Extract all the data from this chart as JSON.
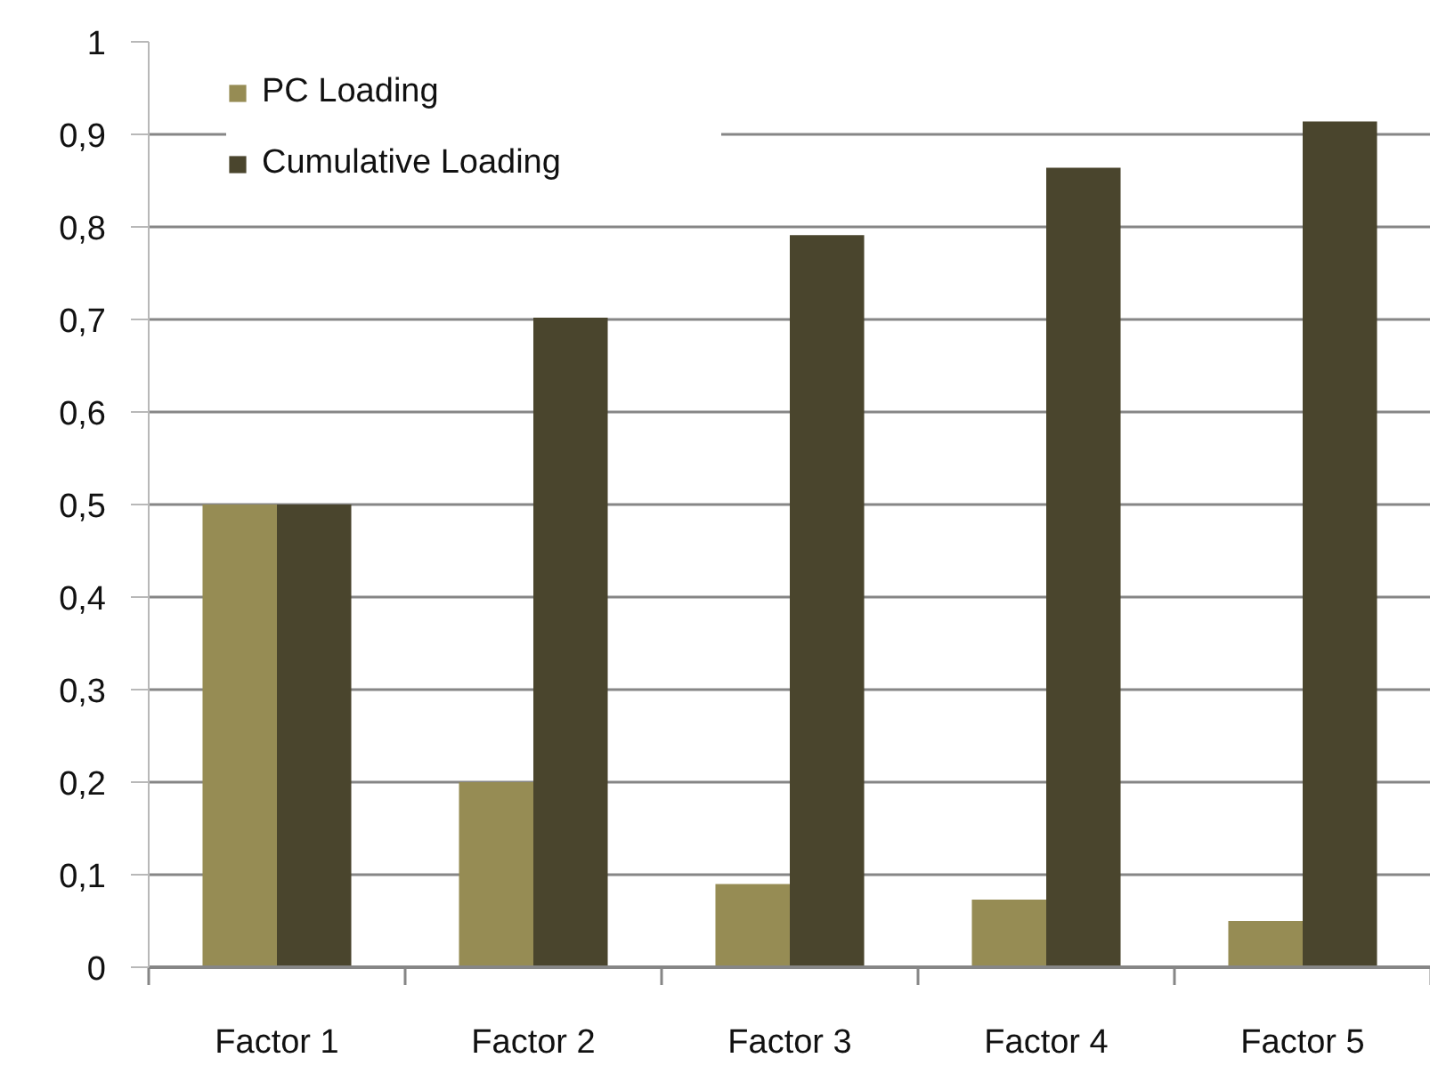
{
  "chart_data": {
    "type": "bar",
    "categories": [
      "Factor 1",
      "Factor 2",
      "Factor 3",
      "Factor 4",
      "Factor 5"
    ],
    "series": [
      {
        "name": "PC Loading",
        "color": "#968c54",
        "values": [
          0.5,
          0.2,
          0.09,
          0.073,
          0.05
        ]
      },
      {
        "name": "Cumulative Loading",
        "color": "#4a452d",
        "values": [
          0.5,
          0.702,
          0.791,
          0.864,
          0.914
        ]
      }
    ],
    "ylim": [
      0,
      1
    ],
    "yticks": [
      0,
      {
        "value": 0.1,
        "label": "0,1"
      },
      {
        "value": 0.2,
        "label": "0,2"
      },
      {
        "value": 0.3,
        "label": "0,3"
      },
      {
        "value": 0.4,
        "label": "0,4"
      },
      {
        "value": 0.5,
        "label": "0,5"
      },
      {
        "value": 0.6,
        "label": "0,6"
      },
      {
        "value": 0.7,
        "label": "0,7"
      },
      {
        "value": 0.8,
        "label": "0,8"
      },
      {
        "value": 0.9,
        "label": "0,9"
      },
      1
    ],
    "grid": "y",
    "legend": "top left"
  }
}
